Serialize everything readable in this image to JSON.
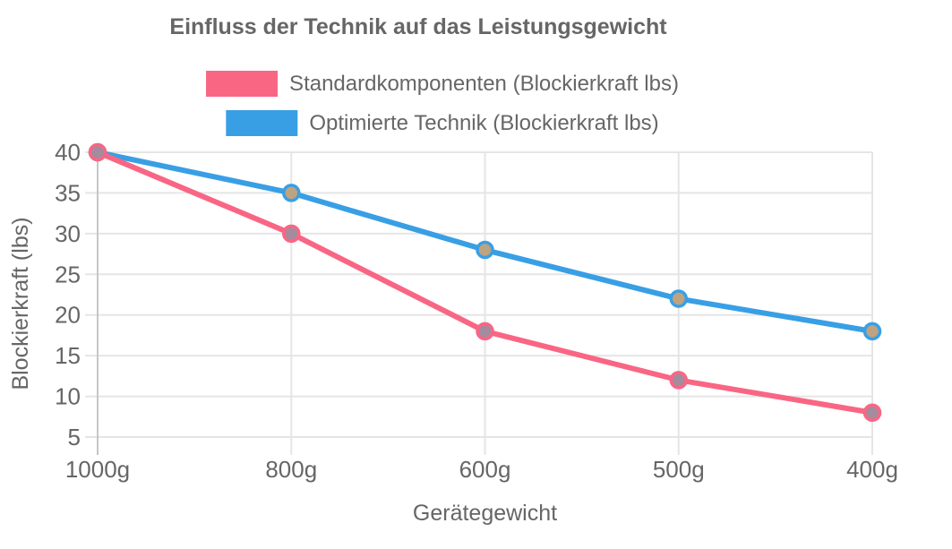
{
  "chart_data": {
    "type": "line",
    "title": "Einfluss der Technik auf das Leistungsgewicht",
    "xlabel": "Gerätegewicht",
    "ylabel": "Blockierkraft (lbs)",
    "categories": [
      "1000g",
      "800g",
      "600g",
      "500g",
      "400g"
    ],
    "series": [
      {
        "name": "Standardkomponenten (Blockierkraft lbs)",
        "values": [
          40,
          30,
          18,
          12,
          8
        ],
        "color": "#F96684",
        "point_fill": "#A48B9D"
      },
      {
        "name": "Optimierte Technik (Blockierkraft lbs)",
        "values": [
          40,
          35,
          28,
          22,
          18
        ],
        "color": "#399FE5",
        "point_fill": "#BFA380"
      }
    ],
    "y_ticks": [
      5,
      10,
      15,
      20,
      25,
      30,
      35,
      40
    ],
    "ylim": [
      2.8,
      40
    ],
    "grid": true,
    "legend_position": "top",
    "colors": {
      "grid": "#E5E5E5",
      "axis": "#C6C6C6",
      "text": "#666666",
      "title": "#666666"
    }
  }
}
